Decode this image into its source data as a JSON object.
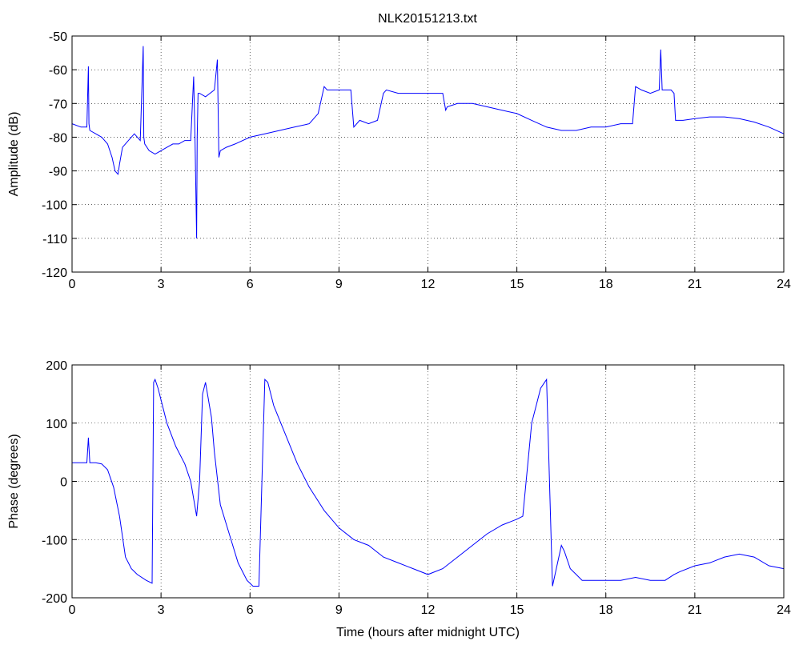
{
  "figure": {
    "title": "NLK20151213.txt"
  },
  "chart_data": [
    {
      "type": "line",
      "title": "NLK20151213.txt",
      "xlabel": "",
      "ylabel": "Amplitude (dB)",
      "xlim": [
        0,
        24
      ],
      "ylim": [
        -120,
        -50
      ],
      "xticks": [
        0,
        3,
        6,
        9,
        12,
        15,
        18,
        21,
        24
      ],
      "yticks": [
        -50,
        -60,
        -70,
        -80,
        -90,
        -100,
        -110,
        -120
      ],
      "grid": true,
      "color": "#0000ff",
      "series": [
        {
          "x": [
            0,
            0.3,
            0.5,
            0.55,
            0.57,
            0.6,
            0.8,
            1.0,
            1.2,
            1.35,
            1.45,
            1.55,
            1.6,
            1.7,
            1.9,
            2.1,
            2.3,
            2.4,
            2.42,
            2.45,
            2.6,
            2.8,
            3.0,
            3.2,
            3.4,
            3.6,
            3.8,
            4.0,
            4.1,
            4.15,
            4.2,
            4.22,
            4.25,
            4.3,
            4.5,
            4.8,
            4.9,
            4.95,
            5.0,
            5.2,
            5.5,
            6.0,
            6.5,
            7.0,
            7.5,
            8.0,
            8.3,
            8.5,
            8.6,
            9.0,
            9.4,
            9.5,
            9.7,
            10.0,
            10.3,
            10.5,
            10.6,
            11.0,
            11.5,
            12.0,
            12.5,
            12.6,
            12.65,
            13.0,
            13.5,
            14.0,
            14.5,
            15.0,
            15.5,
            16.0,
            16.5,
            17.0,
            17.5,
            18.0,
            18.5,
            18.9,
            19.0,
            19.2,
            19.5,
            19.8,
            19.85,
            19.9,
            20.0,
            20.2,
            20.3,
            20.35,
            20.6,
            21.0,
            21.5,
            22.0,
            22.5,
            23.0,
            23.5,
            24.0
          ],
          "y": [
            -76,
            -77,
            -77,
            -59,
            -76,
            -78,
            -79,
            -80,
            -82,
            -86,
            -90,
            -91,
            -88,
            -83,
            -81,
            -79,
            -81,
            -53,
            -80,
            -82,
            -84,
            -85,
            -84,
            -83,
            -82,
            -82,
            -81,
            -81,
            -62,
            -82,
            -110,
            -80,
            -67,
            -67,
            -68,
            -66,
            -57,
            -86,
            -84,
            -83,
            -82,
            -80,
            -79,
            -78,
            -77,
            -76,
            -73,
            -65,
            -66,
            -66,
            -66,
            -77,
            -75,
            -76,
            -75,
            -67,
            -66,
            -67,
            -67,
            -67,
            -67,
            -72,
            -71,
            -70,
            -70,
            -71,
            -72,
            -73,
            -75,
            -77,
            -78,
            -78,
            -77,
            -77,
            -76,
            -76,
            -65,
            -66,
            -67,
            -66,
            -54,
            -66,
            -66,
            -66,
            -67,
            -75,
            -75,
            -74.5,
            -74,
            -74,
            -74.5,
            -75.5,
            -77,
            -79
          ]
        }
      ]
    },
    {
      "type": "line",
      "title": "",
      "xlabel": "Time (hours after midnight UTC)",
      "ylabel": "Phase (degrees)",
      "xlim": [
        0,
        24
      ],
      "ylim": [
        -200,
        200
      ],
      "xticks": [
        0,
        3,
        6,
        9,
        12,
        15,
        18,
        21,
        24
      ],
      "yticks": [
        200,
        100,
        0,
        -100,
        -200
      ],
      "grid": true,
      "color": "#0000ff",
      "series": [
        {
          "x": [
            0,
            0.5,
            0.55,
            0.6,
            0.8,
            1.0,
            1.2,
            1.4,
            1.6,
            1.8,
            2.0,
            2.2,
            2.5,
            2.7,
            2.75,
            2.8,
            2.9,
            3.0,
            3.2,
            3.5,
            3.8,
            4.0,
            4.2,
            4.3,
            4.4,
            4.5,
            4.7,
            4.8,
            5.0,
            5.3,
            5.6,
            5.9,
            6.1,
            6.3,
            6.5,
            6.6,
            6.8,
            7.2,
            7.6,
            8.0,
            8.5,
            9.0,
            9.5,
            10.0,
            10.5,
            11.0,
            11.5,
            12.0,
            12.5,
            13.0,
            13.5,
            14.0,
            14.5,
            15.0,
            15.2,
            15.5,
            15.8,
            16.0,
            16.2,
            16.5,
            16.6,
            16.8,
            17.0,
            17.2,
            17.5,
            18.0,
            18.5,
            19.0,
            19.5,
            20.0,
            20.3,
            20.5,
            21.0,
            21.5,
            22.0,
            22.5,
            23.0,
            23.5,
            24.0
          ],
          "y": [
            32,
            32,
            75,
            32,
            32,
            30,
            20,
            -10,
            -60,
            -130,
            -150,
            -160,
            -170,
            -175,
            170,
            175,
            160,
            140,
            100,
            60,
            30,
            0,
            -60,
            0,
            150,
            170,
            110,
            50,
            -40,
            -90,
            -140,
            -170,
            -180,
            -180,
            175,
            170,
            130,
            80,
            30,
            -10,
            -50,
            -80,
            -100,
            -110,
            -130,
            -140,
            -150,
            -160,
            -150,
            -130,
            -110,
            -90,
            -75,
            -65,
            -60,
            100,
            160,
            175,
            -180,
            -110,
            -120,
            -150,
            -160,
            -170,
            -170,
            -170,
            -170,
            -165,
            -170,
            -170,
            -160,
            -155,
            -145,
            -140,
            -130,
            -125,
            -130,
            -145,
            -150
          ]
        }
      ]
    }
  ]
}
